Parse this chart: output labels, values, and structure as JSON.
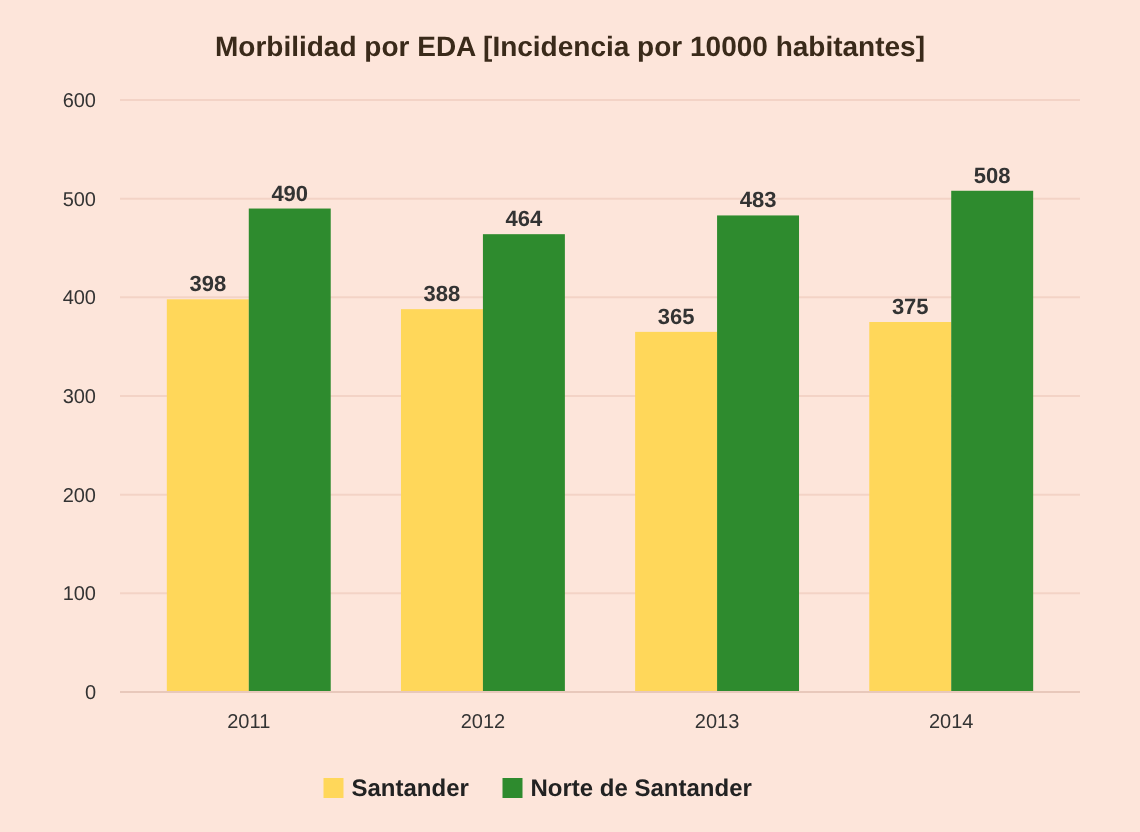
{
  "chart_data": {
    "type": "bar",
    "title": "Morbilidad por EDA [Incidencia por 10000 habitantes]",
    "categories": [
      "2011",
      "2012",
      "2013",
      "2014"
    ],
    "series": [
      {
        "name": "Santander",
        "color": "#ffd75a",
        "values": [
          398,
          388,
          365,
          375
        ]
      },
      {
        "name": "Norte de Santander",
        "color": "#2e8b2e",
        "values": [
          490,
          464,
          483,
          508
        ]
      }
    ],
    "ylim": [
      0,
      600
    ],
    "yticks": [
      0,
      100,
      200,
      300,
      400,
      500,
      600
    ],
    "grid": "y",
    "legend": "bottom",
    "data_labels": true
  }
}
